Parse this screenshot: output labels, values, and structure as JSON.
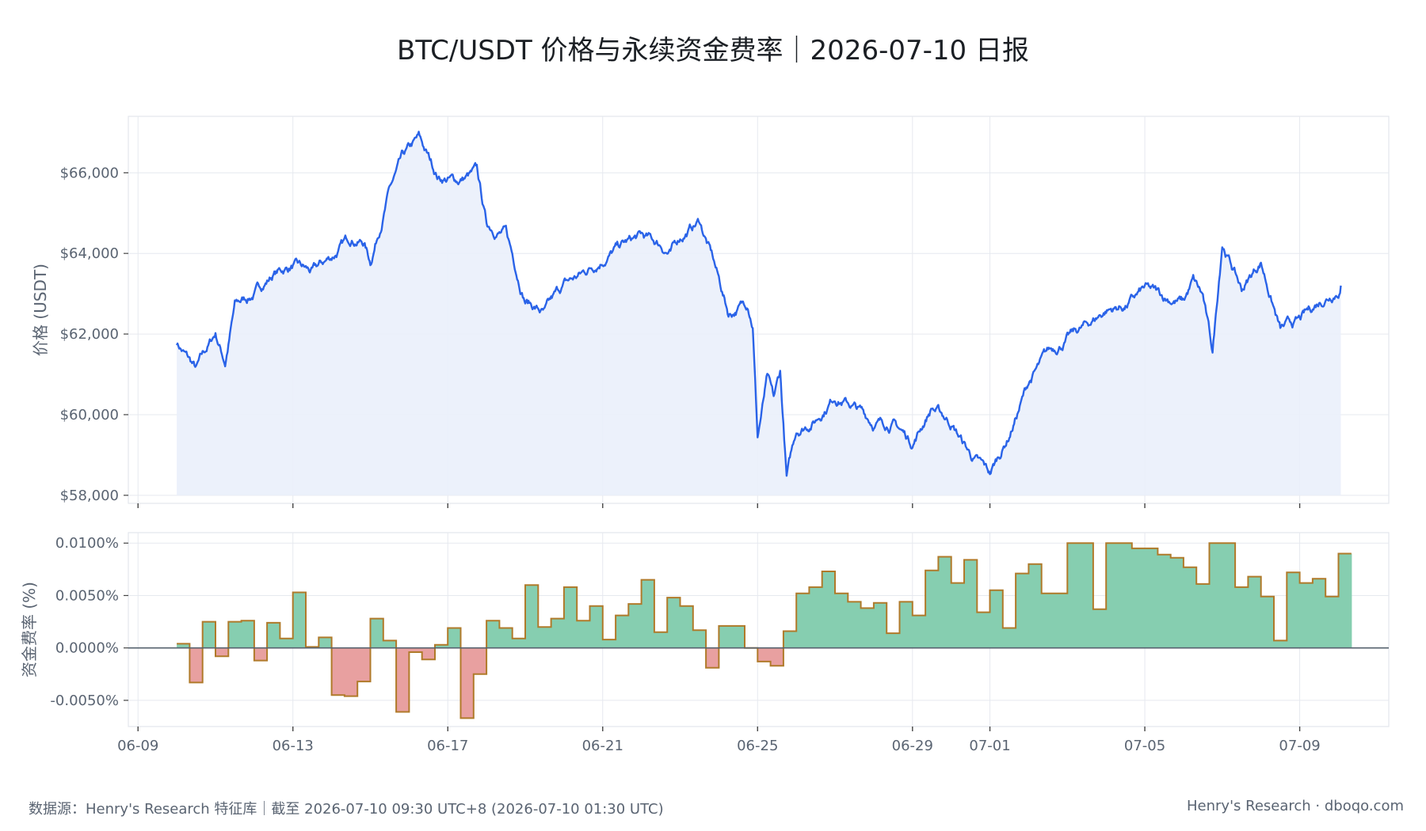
{
  "title": "BTC/USDT 价格与永续资金费率｜2026-07-10 日报",
  "footer": {
    "source": "数据源：Henry's Research 特征库｜截至 2026-07-10 09:30 UTC+8 (2026-07-10 01:30 UTC)",
    "brand": "Henry's Research · dboqo.com"
  },
  "colors": {
    "price_line": "#2a63e8",
    "price_fill": "#eaf0fb",
    "positive_fill": "#86ceb0",
    "negative_fill": "#e8a0a0",
    "positive_step": "#b07a2a",
    "negative_step": "#c5602f",
    "grid": "#e6e9ef",
    "zero_line": "#56626e"
  },
  "chart_data": [
    {
      "type": "line",
      "ylabel": "价格 (USDT)",
      "ylim": [
        57800,
        67400
      ],
      "yticks": [
        58000,
        60000,
        62000,
        64000,
        66000
      ],
      "ytick_labels": [
        "$58,000",
        "$60,000",
        "$62,000",
        "$64,000",
        "$66,000"
      ],
      "grid": true,
      "fill_to": 58000,
      "series": [
        {
          "x": [
            "06-10 00:00",
            "06-10 12:00",
            "06-11 00:00",
            "06-11 06:00",
            "06-11 12:00",
            "06-12 00:00",
            "06-12 12:00",
            "06-13 00:00",
            "06-13 12:00",
            "06-14 00:00",
            "06-14 12:00",
            "06-14 20:00",
            "06-15 00:00",
            "06-15 12:00",
            "06-15 20:00",
            "06-16 06:00",
            "06-16 18:00",
            "06-17 06:00",
            "06-17 18:00",
            "06-18 00:00",
            "06-18 12:00",
            "06-18 20:00",
            "06-19 00:00",
            "06-19 12:00",
            "06-20 00:00",
            "06-20 12:00",
            "06-21 00:00",
            "06-21 12:00",
            "06-22 00:00",
            "06-22 12:00",
            "06-22 18:00",
            "06-23 00:00",
            "06-23 12:00",
            "06-23 20:00",
            "06-24 06:00",
            "06-24 18:00",
            "06-24 21:00",
            "06-25 00:00",
            "06-25 06:00",
            "06-25 10:00",
            "06-25 14:00",
            "06-25 18:00",
            "06-26 00:00",
            "06-26 12:00",
            "06-27 00:00",
            "06-27 12:00",
            "06-28 00:00",
            "06-28 12:00",
            "06-29 00:00",
            "06-29 12:00",
            "06-30 00:00",
            "06-30 12:00",
            "07-01 00:00",
            "07-01 12:00",
            "07-02 00:00",
            "07-02 12:00",
            "07-03 00:00",
            "07-03 12:00",
            "07-04 00:00",
            "07-04 12:00",
            "07-05 00:00",
            "07-05 12:00",
            "07-06 00:00",
            "07-06 06:00",
            "07-06 12:00",
            "07-06 18:00",
            "07-07 00:00",
            "07-07 12:00",
            "07-08 00:00",
            "07-08 12:00",
            "07-09 00:00",
            "07-09 12:00",
            "07-10 01:30"
          ],
          "y": [
            61800,
            61100,
            62000,
            61300,
            62700,
            63000,
            63500,
            63700,
            63500,
            63900,
            64400,
            64300,
            63800,
            65600,
            66300,
            66800,
            65900,
            65800,
            66000,
            64700,
            64500,
            63400,
            62900,
            62500,
            63200,
            63500,
            63900,
            64200,
            64400,
            64200,
            64000,
            64400,
            64800,
            63900,
            62500,
            62800,
            62300,
            59500,
            60900,
            60300,
            61000,
            58400,
            59600,
            59900,
            60500,
            60200,
            59800,
            59800,
            59300,
            60200,
            59800,
            59000,
            58500,
            59500,
            60800,
            61500,
            61900,
            62200,
            62600,
            62700,
            63100,
            62900,
            62800,
            63300,
            62900,
            61500,
            64300,
            63100,
            63800,
            62100,
            62300,
            62800,
            63200
          ]
        }
      ]
    },
    {
      "type": "area",
      "ylabel": "资金费率 (%)",
      "ylim": [
        -0.0075,
        0.011
      ],
      "yticks": [
        -0.005,
        0,
        0.005,
        0.01
      ],
      "ytick_labels": [
        "-0.0050%",
        "0.0000%",
        "0.0050%",
        "0.0100%"
      ],
      "grid": true,
      "step": "8h",
      "series": [
        {
          "x_start": "06-10 00:00",
          "values": [
            0.0004,
            -0.0033,
            0.0025,
            -0.0008,
            0.0025,
            0.0026,
            -0.0012,
            0.0024,
            0.0009,
            0.0053,
            0.0001,
            0.001,
            -0.0045,
            -0.0046,
            -0.0032,
            0.0028,
            0.0007,
            -0.0061,
            -0.0004,
            -0.0011,
            0.0003,
            0.0019,
            -0.0067,
            -0.0025,
            0.0026,
            0.0019,
            0.0009,
            0.006,
            0.002,
            0.0028,
            0.0058,
            0.0026,
            0.004,
            0.0008,
            0.0031,
            0.0042,
            0.0065,
            0.0015,
            0.0048,
            0.004,
            0.0017,
            -0.0019,
            0.0021,
            0.0021,
            0.0,
            -0.0013,
            -0.0017,
            0.0016,
            0.0052,
            0.0058,
            0.0073,
            0.0052,
            0.0044,
            0.0038,
            0.0043,
            0.0014,
            0.0044,
            0.0031,
            0.0074,
            0.0087,
            0.0062,
            0.0084,
            0.0034,
            0.0055,
            0.0019,
            0.0071,
            0.008,
            0.0052,
            0.0052,
            0.01,
            0.01,
            0.0037,
            0.01,
            0.01,
            0.0095,
            0.0095,
            0.0089,
            0.0086,
            0.0077,
            0.0061,
            0.01,
            0.01,
            0.0058,
            0.0068,
            0.0049,
            0.0007,
            0.0072,
            0.0062,
            0.0066,
            0.0049,
            0.009
          ]
        }
      ]
    }
  ],
  "x_ticks": [
    "06-09",
    "06-13",
    "06-17",
    "06-21",
    "06-25",
    "06-29",
    "07-01",
    "07-05",
    "07-09"
  ]
}
